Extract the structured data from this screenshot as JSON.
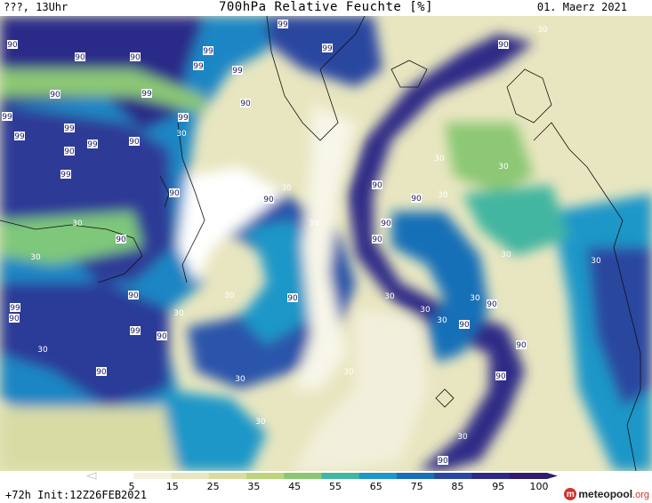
{
  "header": {
    "left": "???, 13Uhr",
    "title": "700hPa Relative Feuchte [%]",
    "date": "01. Maerz 2021"
  },
  "footer": {
    "run": "+72h Init:12Z26FEB2021",
    "logo_main": "meteopool",
    "logo_suffix": ".org"
  },
  "legend": {
    "ticks": [
      "5",
      "15",
      "25",
      "35",
      "45",
      "55",
      "65",
      "75",
      "85",
      "95",
      "100"
    ],
    "colors": [
      "#ffffff",
      "#f4f2de",
      "#e9e6c2",
      "#d9dca0",
      "#bcd47d",
      "#8cc874",
      "#43b6a0",
      "#1f97c8",
      "#1770b8",
      "#2a46a0",
      "#2d2a86",
      "#301c6c"
    ]
  },
  "map": {
    "contour_labels": [
      {
        "v": "90"
      },
      {
        "v": "99"
      },
      {
        "v": "90"
      },
      {
        "v": "99"
      },
      {
        "v": "99"
      },
      {
        "v": "90"
      },
      {
        "v": "99"
      },
      {
        "v": "99"
      },
      {
        "v": "90"
      },
      {
        "v": "99"
      },
      {
        "v": "90"
      },
      {
        "v": "99"
      },
      {
        "v": "99"
      },
      {
        "v": "99"
      },
      {
        "v": "90"
      },
      {
        "v": "99"
      },
      {
        "v": "30"
      },
      {
        "v": "90"
      },
      {
        "v": "99"
      },
      {
        "v": "99"
      },
      {
        "v": "90"
      },
      {
        "v": "30"
      },
      {
        "v": "90"
      },
      {
        "v": "30"
      },
      {
        "v": "30"
      },
      {
        "v": "90"
      },
      {
        "v": "30"
      },
      {
        "v": "90"
      },
      {
        "v": "99"
      },
      {
        "v": "30"
      },
      {
        "v": "30"
      },
      {
        "v": "30"
      },
      {
        "v": "90"
      },
      {
        "v": "90"
      },
      {
        "v": "90"
      },
      {
        "v": "30"
      },
      {
        "v": "90"
      },
      {
        "v": "30"
      },
      {
        "v": "30"
      },
      {
        "v": "30"
      },
      {
        "v": "90"
      },
      {
        "v": "30"
      },
      {
        "v": "30"
      },
      {
        "v": "90"
      },
      {
        "v": "90"
      },
      {
        "v": "30"
      },
      {
        "v": "90"
      },
      {
        "v": "99"
      },
      {
        "v": "90"
      },
      {
        "v": "30"
      },
      {
        "v": "30"
      },
      {
        "v": "90"
      },
      {
        "v": "90"
      },
      {
        "v": "90"
      },
      {
        "v": "30"
      },
      {
        "v": "30"
      },
      {
        "v": "90"
      },
      {
        "v": "30"
      },
      {
        "v": "90"
      },
      {
        "v": "30"
      },
      {
        "v": "30"
      }
    ]
  }
}
